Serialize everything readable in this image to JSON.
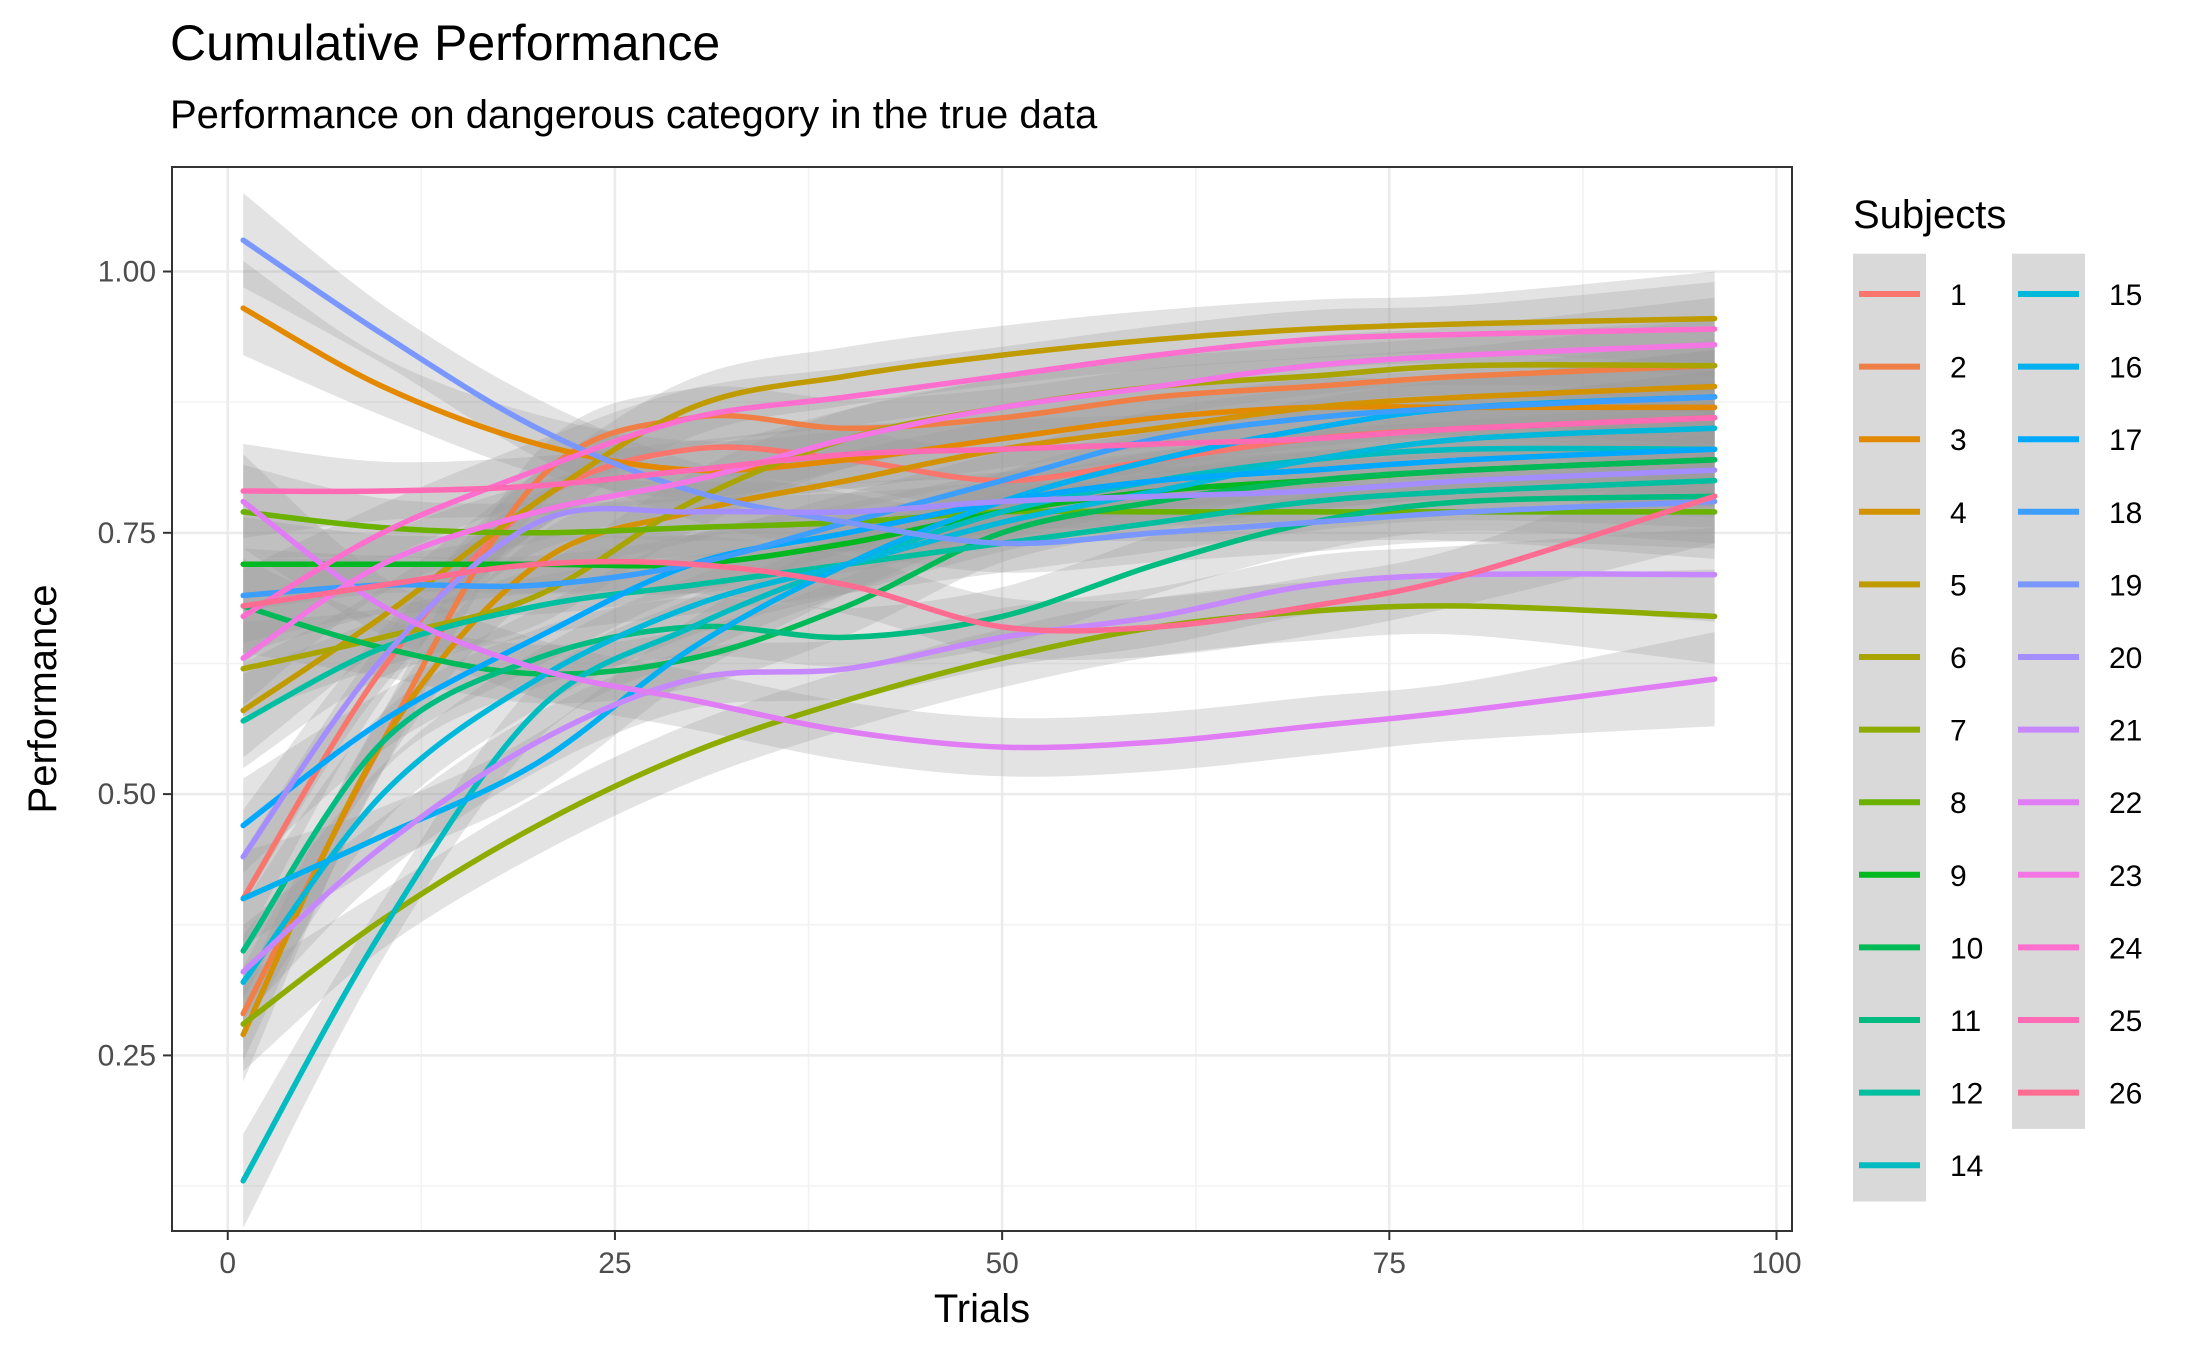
{
  "chart_data": {
    "type": "line",
    "title": "Cumulative Performance",
    "subtitle": "Performance on dangerous category in the true data",
    "xlabel": "Trials",
    "ylabel": "Performance",
    "xlim": [
      -3.6,
      101
    ],
    "ylim": [
      0.082,
      1.1
    ],
    "xticks": [
      0,
      25,
      50,
      75,
      100
    ],
    "xtick_labels": [
      "0",
      "25",
      "50",
      "75",
      "100"
    ],
    "yticks": [
      0.25,
      0.5,
      0.75,
      1.0
    ],
    "ytick_labels": [
      "0.25",
      "0.50",
      "0.75",
      "1.00"
    ],
    "grid": true,
    "ribbon": "confidence band (grey) around each smoothed line",
    "legend": {
      "title": "Subjects",
      "placement": "right",
      "columns": 2,
      "entries": [
        "1",
        "2",
        "3",
        "4",
        "5",
        "6",
        "7",
        "8",
        "9",
        "10",
        "11",
        "12",
        "14",
        "15",
        "16",
        "17",
        "18",
        "19",
        "20",
        "21",
        "22",
        "23",
        "24",
        "25",
        "26"
      ]
    },
    "x": [
      1,
      10,
      20,
      30,
      40,
      50,
      60,
      70,
      80,
      96
    ],
    "series": [
      {
        "name": "1",
        "color": "#F8766D",
        "values": [
          0.4,
          0.62,
          0.78,
          0.83,
          0.82,
          0.8,
          0.82,
          0.84,
          0.85,
          0.86
        ]
      },
      {
        "name": "2",
        "color": "#EF7F47",
        "values": [
          0.29,
          0.55,
          0.8,
          0.86,
          0.85,
          0.86,
          0.88,
          0.89,
          0.9,
          0.91
        ]
      },
      {
        "name": "3",
        "color": "#E38900",
        "values": [
          0.965,
          0.89,
          0.835,
          0.81,
          0.82,
          0.84,
          0.86,
          0.87,
          0.87,
          0.87
        ]
      },
      {
        "name": "4",
        "color": "#D39200",
        "values": [
          0.27,
          0.55,
          0.72,
          0.77,
          0.8,
          0.83,
          0.85,
          0.87,
          0.88,
          0.89
        ]
      },
      {
        "name": "5",
        "color": "#C09B00",
        "values": [
          0.58,
          0.67,
          0.78,
          0.87,
          0.9,
          0.92,
          0.935,
          0.945,
          0.95,
          0.955
        ]
      },
      {
        "name": "6",
        "color": "#A9A400",
        "values": [
          0.62,
          0.65,
          0.69,
          0.78,
          0.84,
          0.87,
          0.89,
          0.9,
          0.91,
          0.91
        ]
      },
      {
        "name": "7",
        "color": "#8EAB00",
        "values": [
          0.28,
          0.38,
          0.47,
          0.54,
          0.59,
          0.63,
          0.66,
          0.675,
          0.68,
          0.67
        ]
      },
      {
        "name": "8",
        "color": "#6AB100",
        "values": [
          0.77,
          0.755,
          0.75,
          0.755,
          0.76,
          0.77,
          0.77,
          0.77,
          0.77,
          0.77
        ]
      },
      {
        "name": "9",
        "color": "#00B81F",
        "values": [
          0.72,
          0.72,
          0.72,
          0.72,
          0.74,
          0.77,
          0.79,
          0.8,
          0.81,
          0.82
        ]
      },
      {
        "name": "10",
        "color": "#00BA58",
        "values": [
          0.68,
          0.64,
          0.615,
          0.63,
          0.68,
          0.75,
          0.78,
          0.8,
          0.81,
          0.82
        ]
      },
      {
        "name": "11",
        "color": "#00BC80",
        "values": [
          0.35,
          0.55,
          0.63,
          0.66,
          0.65,
          0.67,
          0.72,
          0.76,
          0.78,
          0.785
        ]
      },
      {
        "name": "12",
        "color": "#00BFA1",
        "values": [
          0.57,
          0.64,
          0.68,
          0.7,
          0.72,
          0.74,
          0.76,
          0.78,
          0.79,
          0.8
        ]
      },
      {
        "name": "14",
        "color": "#00BCC0",
        "values": [
          0.13,
          0.37,
          0.58,
          0.66,
          0.72,
          0.77,
          0.8,
          0.82,
          0.83,
          0.83
        ]
      },
      {
        "name": "15",
        "color": "#00B8D9",
        "values": [
          0.32,
          0.5,
          0.61,
          0.68,
          0.72,
          0.76,
          0.79,
          0.82,
          0.84,
          0.85
        ]
      },
      {
        "name": "16",
        "color": "#00B0F0",
        "values": [
          0.4,
          0.46,
          0.53,
          0.64,
          0.72,
          0.78,
          0.82,
          0.85,
          0.87,
          0.88
        ]
      },
      {
        "name": "17",
        "color": "#00A8FF",
        "values": [
          0.47,
          0.57,
          0.65,
          0.72,
          0.75,
          0.78,
          0.8,
          0.81,
          0.82,
          0.83
        ]
      },
      {
        "name": "18",
        "color": "#3C9EFF",
        "values": [
          0.69,
          0.7,
          0.7,
          0.72,
          0.76,
          0.8,
          0.84,
          0.86,
          0.87,
          0.88
        ]
      },
      {
        "name": "19",
        "color": "#7997FF",
        "values": [
          1.03,
          0.94,
          0.85,
          0.79,
          0.76,
          0.74,
          0.75,
          0.76,
          0.77,
          0.78
        ]
      },
      {
        "name": "20",
        "color": "#A48EFF",
        "values": [
          0.44,
          0.63,
          0.76,
          0.77,
          0.77,
          0.78,
          0.785,
          0.79,
          0.8,
          0.81
        ]
      },
      {
        "name": "21",
        "color": "#C687FF",
        "values": [
          0.33,
          0.45,
          0.55,
          0.61,
          0.62,
          0.65,
          0.67,
          0.7,
          0.71,
          0.71
        ]
      },
      {
        "name": "22",
        "color": "#E07DF5",
        "values": [
          0.78,
          0.68,
          0.62,
          0.59,
          0.56,
          0.545,
          0.55,
          0.565,
          0.58,
          0.61
        ]
      },
      {
        "name": "23",
        "color": "#F476E4",
        "values": [
          0.63,
          0.72,
          0.77,
          0.8,
          0.84,
          0.87,
          0.89,
          0.91,
          0.92,
          0.93
        ]
      },
      {
        "name": "24",
        "color": "#FE6ECF",
        "values": [
          0.67,
          0.75,
          0.81,
          0.86,
          0.88,
          0.9,
          0.92,
          0.935,
          0.94,
          0.945
        ]
      },
      {
        "name": "25",
        "color": "#FF6AB4",
        "values": [
          0.79,
          0.79,
          0.795,
          0.81,
          0.825,
          0.83,
          0.835,
          0.84,
          0.85,
          0.86
        ]
      },
      {
        "name": "26",
        "color": "#FF6C92",
        "values": [
          0.68,
          0.7,
          0.72,
          0.72,
          0.7,
          0.66,
          0.66,
          0.68,
          0.71,
          0.785
        ]
      }
    ]
  }
}
